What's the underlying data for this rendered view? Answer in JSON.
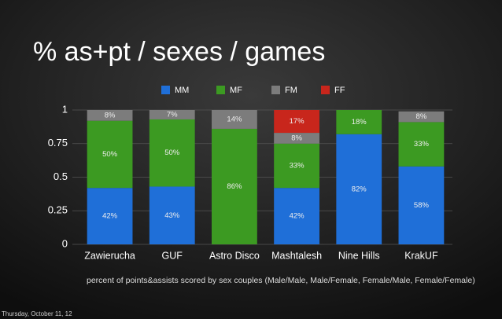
{
  "chart_data": {
    "type": "stacked_bar",
    "title": "% as+pt / sexes / games",
    "caption": "percent of points&assists scored by sex couples (Male/Male, Male/Female, Female/Male, Female/Female)",
    "footer": "Thursday, October 11, 12",
    "categories": [
      "Zawierucha",
      "GUF",
      "Astro Disco",
      "Mashtalesh",
      "Nine Hills",
      "KrakUF"
    ],
    "series": [
      {
        "name": "MM",
        "color": "#1f6fd8",
        "values": [
          0.42,
          0.43,
          0,
          0.42,
          0.82,
          0.58
        ],
        "value_labels": [
          "42%",
          "43%",
          null,
          "42%",
          "82%",
          "58%"
        ]
      },
      {
        "name": "MF",
        "color": "#3c9a22",
        "values": [
          0.5,
          0.5,
          0.86,
          0.33,
          0.18,
          0.33
        ],
        "value_labels": [
          "50%",
          "50%",
          "86%",
          "33%",
          "18%",
          "33%"
        ]
      },
      {
        "name": "FM",
        "color": "#7c7c7c",
        "values": [
          0.08,
          0.07,
          0.14,
          0.08,
          0,
          0.08
        ],
        "value_labels": [
          "8%",
          "7%",
          "14%",
          "8%",
          null,
          "8%"
        ]
      },
      {
        "name": "FF",
        "color": "#c8261c",
        "values": [
          0,
          0,
          0,
          0.17,
          0,
          0
        ],
        "value_labels": [
          null,
          null,
          null,
          "17%",
          null,
          null
        ]
      }
    ],
    "ylim": [
      0,
      1
    ],
    "yticks": [
      0,
      0.25,
      0.5,
      0.75,
      1
    ],
    "grid": true,
    "legend": "top"
  }
}
